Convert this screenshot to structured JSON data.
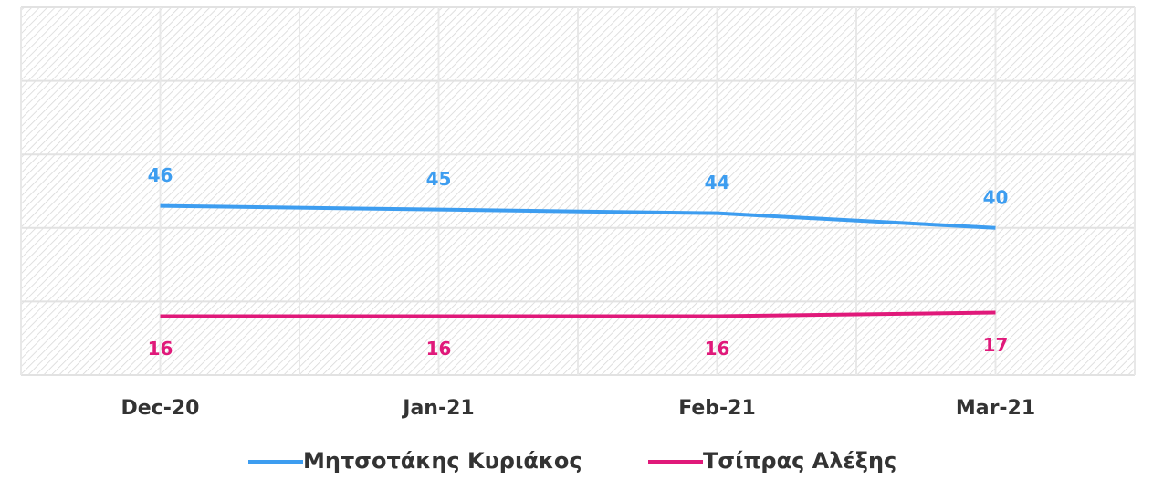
{
  "chart_data": {
    "type": "line",
    "categories": [
      "Dec-20",
      "Jan-21",
      "Feb-21",
      "Mar-21"
    ],
    "series": [
      {
        "name": "Μητσοτάκης Κυριάκος",
        "color": "#3d9df0",
        "values": [
          46,
          45,
          44,
          40
        ]
      },
      {
        "name": "Τσίπρας Αλέξης",
        "color": "#e0197a",
        "values": [
          16,
          16,
          16,
          17
        ]
      }
    ],
    "ylim": [
      0,
      100
    ],
    "yticks": [
      0,
      20,
      40,
      60,
      80,
      100
    ],
    "grid": true,
    "legend": "bottom"
  }
}
